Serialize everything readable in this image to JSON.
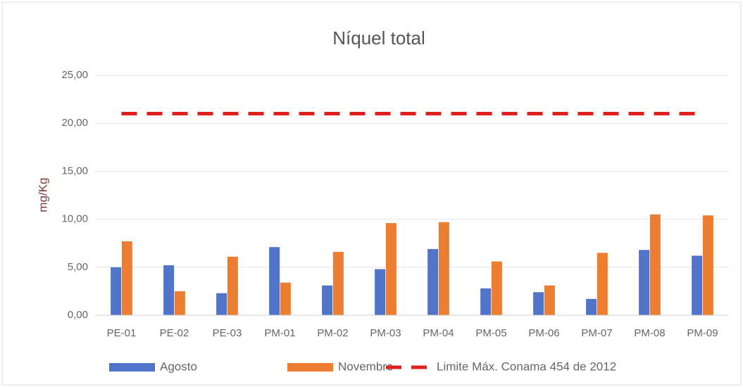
{
  "chart_data": {
    "type": "bar",
    "title": "Níquel total",
    "y_label": "mg/Kg",
    "categories": [
      "PE-01",
      "PE-02",
      "PE-03",
      "PM-01",
      "PM-02",
      "PM-03",
      "PM-04",
      "PM-05",
      "PM-06",
      "PM-07",
      "PM-08",
      "PM-09"
    ],
    "series": [
      {
        "name": "Agosto",
        "color": "#4f74c9",
        "values": [
          5.0,
          5.2,
          2.3,
          7.1,
          3.1,
          4.8,
          6.9,
          2.8,
          2.4,
          1.7,
          6.8,
          6.2
        ]
      },
      {
        "name": "Novembro",
        "color": "#ed7d31",
        "values": [
          7.7,
          2.5,
          6.1,
          3.4,
          6.6,
          9.6,
          9.7,
          5.6,
          3.1,
          6.5,
          10.5,
          10.4
        ]
      },
      {
        "name": "Limite Máx. Conama 454 de 2012",
        "type": "line",
        "dashed": true,
        "color": "#e0201c",
        "values": [
          21,
          21,
          21,
          21,
          21,
          21,
          21,
          21,
          21,
          21,
          21,
          21
        ]
      }
    ],
    "ylim": [
      0,
      25
    ],
    "yticks": [
      {
        "value": 0,
        "label": "0,00"
      },
      {
        "value": 5,
        "label": "5,00"
      },
      {
        "value": 10,
        "label": "10,00"
      },
      {
        "value": 15,
        "label": "15,00"
      },
      {
        "value": 20,
        "label": "20,00"
      },
      {
        "value": 25,
        "label": "25,00"
      }
    ],
    "grid": true,
    "legend": "bottom"
  }
}
